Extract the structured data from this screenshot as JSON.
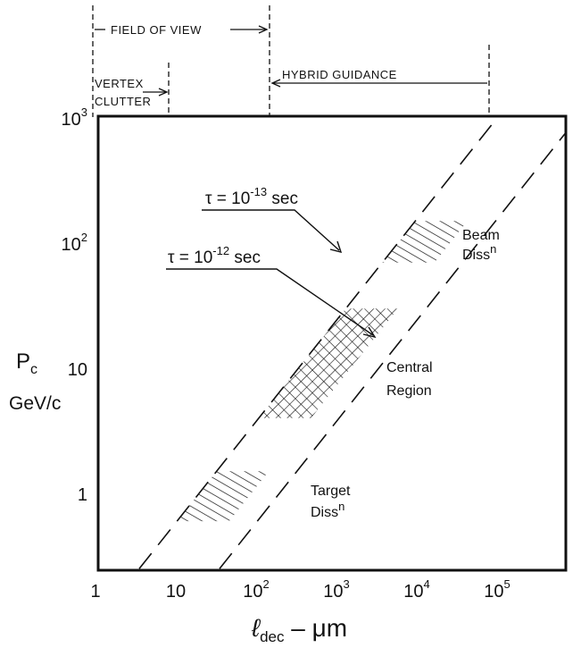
{
  "chart_data": {
    "type": "line",
    "xscale": "log",
    "yscale": "log",
    "xlim": [
      1,
      1000000
    ],
    "ylim": [
      0.25,
      1000
    ],
    "x_ticks": [
      {
        "base": "1",
        "exp": ""
      },
      {
        "base": "10",
        "exp": ""
      },
      {
        "base": "10",
        "exp": "2"
      },
      {
        "base": "10",
        "exp": "3"
      },
      {
        "base": "10",
        "exp": "4"
      },
      {
        "base": "10",
        "exp": "5"
      }
    ],
    "y_ticks": [
      {
        "base": "1",
        "exp": ""
      },
      {
        "base": "10",
        "exp": ""
      },
      {
        "base": "10",
        "exp": "2"
      },
      {
        "base": "10",
        "exp": "3"
      }
    ],
    "ylabel_main": "P",
    "ylabel_sub": "c",
    "ylabel_unit": "GeV/c",
    "xlabel_main": "ℓ",
    "xlabel_sub": "dec",
    "xlabel_rest": " – μm",
    "series": [
      {
        "name": "τ = 10⁻¹³ sec",
        "x": [
          3.5,
          100000
        ],
        "y": [
          0.25,
          1000
        ]
      },
      {
        "name": "τ = 10⁻¹² sec",
        "x": [
          35,
          1000000
        ],
        "y": [
          0.25,
          1000
        ]
      }
    ],
    "tau_labels": [
      {
        "prefix": "τ = 10",
        "exp": "-13",
        "suffix": " sec"
      },
      {
        "prefix": "τ = 10",
        "exp": "-12",
        "suffix": " sec"
      }
    ],
    "regions": [
      {
        "name": "Beam",
        "sup": "n",
        "word": "Diss",
        "y_range": [
          70,
          150
        ]
      },
      {
        "name": "Central",
        "line2": "Region",
        "y_range": [
          4,
          30
        ]
      },
      {
        "name": "Target",
        "sup": "n",
        "word": "Diss",
        "y_range": [
          0.6,
          1.5
        ]
      }
    ],
    "top_annotations": {
      "field_of_view": {
        "label": "FIELD OF VIEW",
        "x_range": [
          1,
          170
        ]
      },
      "vertex_clutter": {
        "line1": "VERTEX",
        "line2": "CLUTTER",
        "x_range": [
          1,
          9
        ]
      },
      "hybrid_guidance": {
        "label": "HYBRID GUIDANCE",
        "x_range": [
          170,
          90000
        ]
      }
    }
  }
}
